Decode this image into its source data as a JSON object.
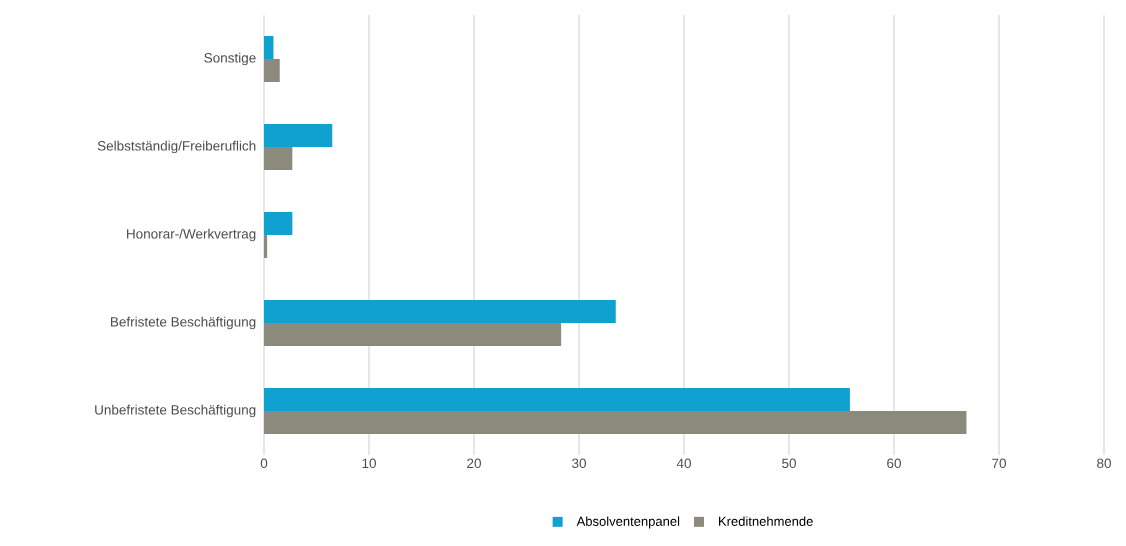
{
  "chart_data": {
    "type": "bar",
    "orientation": "horizontal",
    "categories": [
      "Sonstige",
      "Selbstständig/Freiberuflich",
      "Honorar-/Werkvertrag",
      "Befristete Beschäftigung",
      "Unbefristete Beschäftigung"
    ],
    "series": [
      {
        "name": "Absolventenpanel",
        "color": "#11a1d0",
        "values": [
          0.9,
          6.5,
          2.7,
          33.5,
          55.8
        ]
      },
      {
        "name": "Kreditnehmende",
        "color": "#8c8a7c",
        "values": [
          1.5,
          2.7,
          0.3,
          28.3,
          66.9
        ]
      }
    ],
    "xlim": [
      0,
      80
    ],
    "xticks": [
      0,
      10,
      20,
      30,
      40,
      50,
      60,
      70,
      80
    ],
    "grid": "x",
    "legend": "bottom"
  }
}
